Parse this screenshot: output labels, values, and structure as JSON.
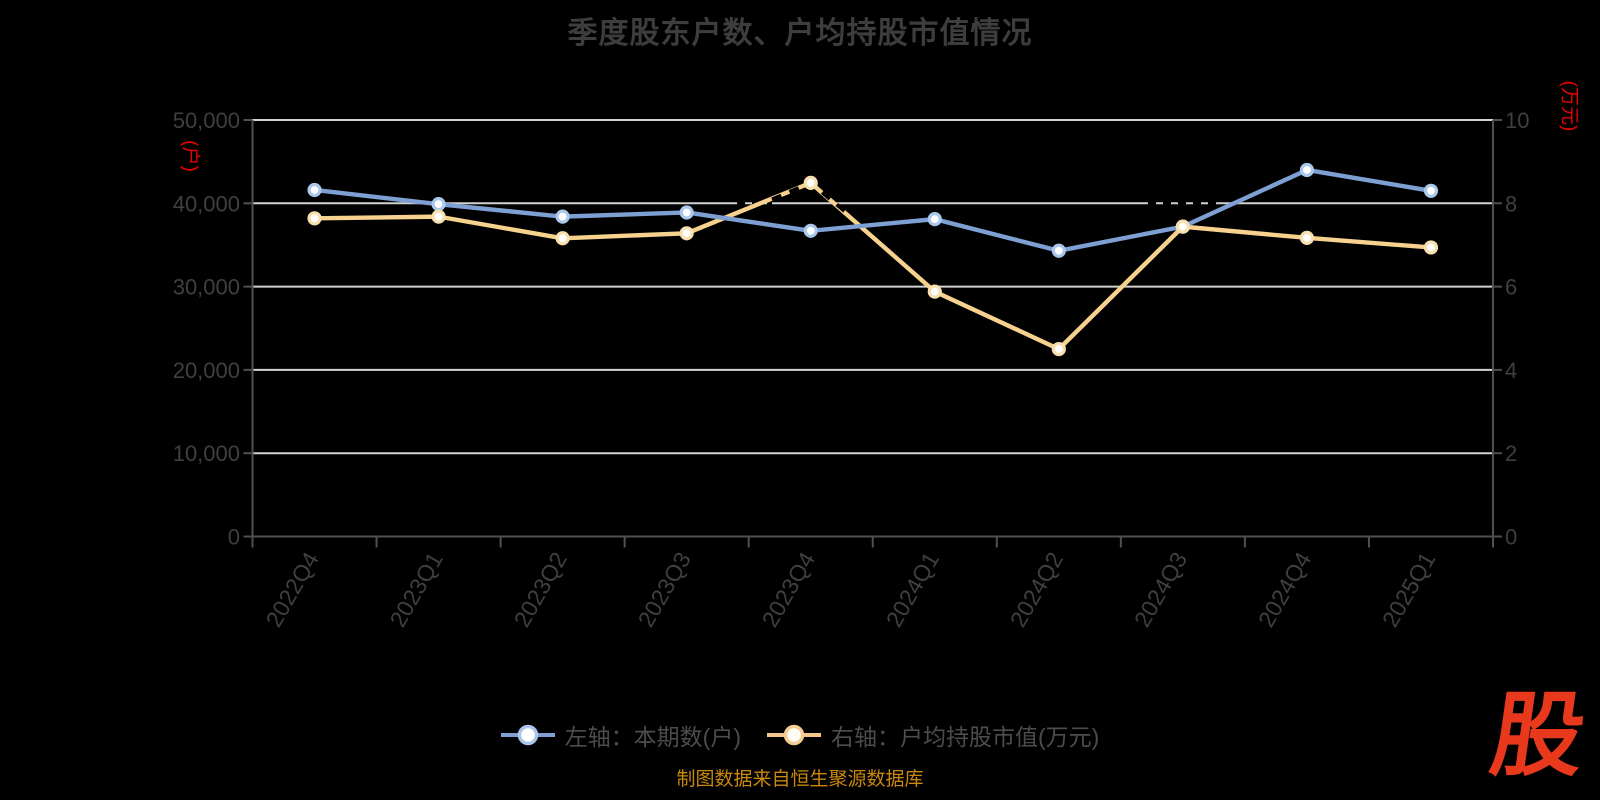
{
  "title": {
    "text": "季度股东户数、户均持股市值情况"
  },
  "footer": {
    "source": "制图数据来自恒生聚源数据库"
  },
  "logo": {
    "text": "股"
  },
  "legend": {
    "items": [
      {
        "label": "左轴：本期数(户)",
        "color": "#7d9fd2",
        "ring": "#a9c6e9"
      },
      {
        "label": "右轴：户均持股市值(万元)",
        "color": "#f2c98a",
        "ring": "#f3cd92"
      }
    ]
  },
  "colors": {
    "background": "#000000",
    "title": "#3d3d3d",
    "tick_label": "#3f3f3f",
    "gridline": "#d2d2d2",
    "axis_line": "#505050",
    "series_blue": "#7d9fd2",
    "series_blue_ring": "#aac8ec",
    "series_yellow": "#f6d28e",
    "series_yellow_ring": "#f8e0ae",
    "axis_name_red": "#ec0000",
    "legend_text": "#4c4c4c",
    "footer_orange": "#c9870c",
    "logo_red": "#e8391d"
  },
  "chart_data": {
    "type": "line",
    "title": "季度股东户数、户均持股市值情况",
    "categories": [
      "2022Q4",
      "2023Q1",
      "2023Q2",
      "2023Q3",
      "2023Q4",
      "2024Q1",
      "2024Q2",
      "2024Q3",
      "2024Q4",
      "2025Q1"
    ],
    "series": [
      {
        "name": "左轴：本期数(户)",
        "axis": "left",
        "color": "#7d9fd2",
        "marker_ring": "#aac8ec",
        "values": [
          41600,
          39900,
          38400,
          38900,
          36700,
          38100,
          34300,
          37200,
          44000,
          41500
        ]
      },
      {
        "name": "右轴：户均持股市值(万元)",
        "axis": "right",
        "color": "#f6d28e",
        "marker_ring": "#f8e0ae",
        "values": [
          7.64,
          7.68,
          7.16,
          7.28,
          8.49,
          5.88,
          4.5,
          7.44,
          7.17,
          6.94
        ]
      }
    ],
    "left_axis": {
      "name": "(户)",
      "min": 0,
      "max": 50000,
      "tick_labels": [
        "50,000",
        "40,000",
        "30,000",
        "20,000",
        "10,000",
        "0"
      ]
    },
    "right_axis": {
      "name": "(万元)",
      "min": 0,
      "max": 10,
      "tick_labels": [
        "10",
        "8",
        "6",
        "4",
        "2",
        "0"
      ]
    },
    "grid": true,
    "legend_position": "bottom",
    "x_label_rotation_deg": -60
  }
}
